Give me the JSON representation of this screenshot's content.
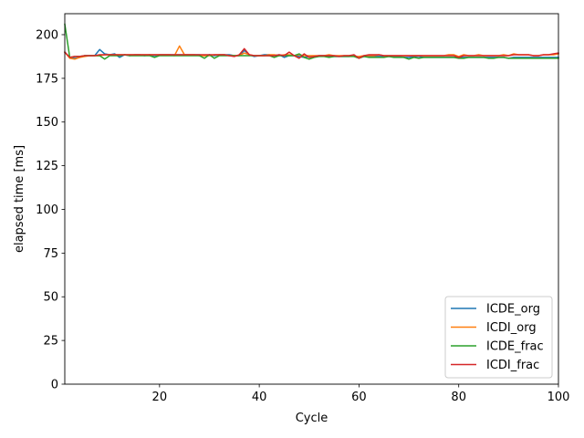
{
  "chart_data": {
    "type": "line",
    "title": "",
    "xlabel": "Cycle",
    "ylabel": "elapsed time [ms]",
    "xlim": [
      1,
      100
    ],
    "ylim": [
      0,
      212
    ],
    "xticks": [
      20,
      40,
      60,
      80,
      100
    ],
    "yticks": [
      0,
      25,
      50,
      75,
      100,
      125,
      150,
      175,
      200
    ],
    "grid": false,
    "legend_position": "lower-right",
    "x": [
      1,
      2,
      3,
      4,
      5,
      6,
      7,
      8,
      9,
      10,
      11,
      12,
      13,
      14,
      15,
      16,
      17,
      18,
      19,
      20,
      21,
      22,
      23,
      24,
      25,
      26,
      27,
      28,
      29,
      30,
      31,
      32,
      33,
      34,
      35,
      36,
      37,
      38,
      39,
      40,
      41,
      42,
      43,
      44,
      45,
      46,
      47,
      48,
      49,
      50,
      51,
      52,
      53,
      54,
      55,
      56,
      57,
      58,
      59,
      60,
      61,
      62,
      63,
      64,
      65,
      66,
      67,
      68,
      69,
      70,
      71,
      72,
      73,
      74,
      75,
      76,
      77,
      78,
      79,
      80,
      81,
      82,
      83,
      84,
      85,
      86,
      87,
      88,
      89,
      90,
      91,
      92,
      93,
      94,
      95,
      96,
      97,
      98,
      99,
      100
    ],
    "series": [
      {
        "name": "ICDE_org",
        "color": "#1f77b4",
        "values": [
          190,
          187,
          186.5,
          187,
          188,
          188,
          188,
          191.5,
          189,
          188.5,
          189,
          187,
          188.5,
          188,
          188.5,
          188.5,
          188,
          188.5,
          188,
          188.5,
          188.5,
          188.5,
          188.5,
          188.5,
          188.5,
          188.5,
          188.5,
          188.5,
          188,
          188.5,
          188,
          188.5,
          188.5,
          188.5,
          188,
          188,
          191,
          188.5,
          187.5,
          188,
          188.5,
          188.5,
          188,
          188.5,
          187,
          188,
          188,
          187.5,
          187,
          187.5,
          187.5,
          188,
          188,
          187.5,
          187.5,
          187.5,
          187.5,
          187.5,
          188,
          187,
          187.5,
          187.5,
          187.5,
          187.5,
          187.5,
          187.5,
          187.5,
          187.5,
          187,
          187,
          187.5,
          187.5,
          187,
          187,
          187,
          187,
          187,
          187,
          187,
          187,
          187,
          187,
          187,
          187,
          187,
          187,
          187,
          187,
          187,
          186.5,
          187,
          187,
          187,
          187,
          187,
          187,
          187,
          187,
          187,
          187
        ]
      },
      {
        "name": "ICDI_org",
        "color": "#ff7f0e",
        "values": [
          190,
          186.5,
          186,
          187,
          187.5,
          188,
          188,
          188,
          188.5,
          188.5,
          188.5,
          188.5,
          188.5,
          188.5,
          188.5,
          188.5,
          188.5,
          188.5,
          188.5,
          188.5,
          188.5,
          188.5,
          188,
          193.5,
          188.5,
          188.5,
          188.5,
          188,
          188,
          188,
          188.5,
          188.5,
          188.5,
          188,
          188,
          188,
          189.5,
          188.5,
          188,
          188,
          188,
          188.5,
          188.5,
          188,
          188.5,
          188.5,
          188,
          188.5,
          188,
          188,
          188,
          188,
          188,
          188.5,
          188,
          188,
          188,
          188,
          187.5,
          187.5,
          188,
          188,
          188,
          188.5,
          188,
          188,
          188,
          188,
          188,
          188,
          188,
          188,
          188,
          188,
          188,
          188,
          188,
          188.5,
          188.5,
          187.5,
          188.5,
          188,
          188,
          188.5,
          188,
          188,
          188,
          188,
          188.5,
          188,
          189,
          188.5,
          188.5,
          188.5,
          188,
          188,
          188.5,
          188.5,
          188.5,
          189
        ]
      },
      {
        "name": "ICDE_frac",
        "color": "#2ca02c",
        "values": [
          206,
          187,
          187.5,
          187.5,
          188,
          188,
          188,
          188,
          186,
          188,
          188,
          188,
          188.5,
          188,
          188,
          188,
          188,
          188,
          187,
          188,
          188,
          188,
          188,
          188,
          188,
          188,
          188,
          188,
          186.5,
          188.5,
          186.5,
          188,
          188,
          188,
          188,
          188,
          188,
          188,
          188,
          188,
          188,
          188,
          187,
          188,
          188,
          188,
          188,
          189,
          187,
          186,
          187,
          187.5,
          187.5,
          187,
          187.5,
          187.5,
          187.5,
          187.5,
          187.5,
          186.5,
          187.5,
          187,
          187,
          187,
          187,
          187.5,
          187,
          187,
          187,
          186,
          187,
          186.5,
          187,
          187,
          187,
          187,
          187,
          187,
          187,
          186.5,
          186.5,
          187,
          187,
          187,
          187,
          186.5,
          186.5,
          187,
          187,
          186.5,
          186.5,
          186.5,
          186.5,
          186.5,
          186.5,
          186.5,
          186.5,
          186.5,
          186.5,
          186.5
        ]
      },
      {
        "name": "ICDI_frac",
        "color": "#d62728",
        "values": [
          190,
          187,
          187.5,
          187.5,
          188,
          188,
          188,
          188.5,
          188.5,
          188.5,
          188.5,
          188.5,
          188.5,
          188.5,
          188.5,
          188.5,
          188.5,
          188.5,
          188.5,
          188.5,
          188.5,
          188.5,
          188.5,
          188.5,
          188.5,
          188.5,
          188.5,
          188.5,
          188.5,
          188.5,
          188.5,
          188.5,
          188.5,
          188,
          187.5,
          188.5,
          192,
          188.5,
          188,
          188,
          188,
          188,
          188,
          188.5,
          188,
          190,
          188,
          186.5,
          189,
          187,
          187.5,
          188,
          188,
          188,
          188,
          187.5,
          188,
          188,
          188.5,
          186.5,
          188,
          188.5,
          188.5,
          188.5,
          188,
          188,
          188,
          188,
          188,
          188,
          188,
          188,
          188,
          188,
          188,
          188,
          188,
          188,
          188,
          187,
          188,
          188,
          188,
          188,
          188,
          188,
          188,
          188,
          188,
          188,
          188.5,
          188.5,
          188.5,
          188.5,
          188,
          188,
          188.5,
          188.5,
          189,
          189.5
        ]
      }
    ]
  }
}
